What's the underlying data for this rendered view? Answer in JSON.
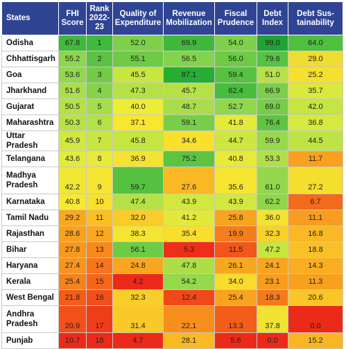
{
  "chart_data": {
    "type": "table",
    "columns": [
      "States",
      "FHI Score",
      "Rank 2022-23",
      "Quality of Expenditure",
      "Revenue Mobilization",
      "Fiscal Prudence",
      "Debt Index",
      "Debt Sus- tainability"
    ],
    "rows": [
      {
        "state": "Odisha",
        "values": [
          "67.8",
          "1",
          "52.0",
          "69.9",
          "54.0",
          "99.0",
          "64.0"
        ],
        "colors": [
          "#3fba3a",
          "#3fba3a",
          "#7ed04a",
          "#40b83a",
          "#7ed14b",
          "#1fa332",
          "#4fc03d"
        ]
      },
      {
        "state": "Chhattisgarh",
        "values": [
          "55.2",
          "2",
          "55.1",
          "56.5",
          "56.0",
          "79.6",
          "29.0"
        ],
        "colors": [
          "#8ed64c",
          "#5cc241",
          "#6fca45",
          "#84d34c",
          "#6ecb46",
          "#58c242",
          "#f0dc30"
        ]
      },
      {
        "state": "Goa",
        "values": [
          "53.6",
          "3",
          "45.5",
          "87.1",
          "59.4",
          "51.0",
          "25.2"
        ],
        "colors": [
          "#92d84e",
          "#74cb46",
          "#c7e640",
          "#27ad34",
          "#57c241",
          "#b7e146",
          "#f6e02e"
        ]
      },
      {
        "state": "Jharkhand",
        "values": [
          "51.6",
          "4",
          "47.3",
          "45.7",
          "62.4",
          "66.9",
          "35.7"
        ],
        "colors": [
          "#aadf4b",
          "#86d24b",
          "#b5e146",
          "#b5e146",
          "#48bc3d",
          "#7ccf4a",
          "#d9ea3d"
        ]
      },
      {
        "state": "Gujarat",
        "values": [
          "50.5",
          "5",
          "40.0",
          "48.7",
          "52.7",
          "69.0",
          "42.0"
        ],
        "colors": [
          "#b4e146",
          "#a6dd49",
          "#eeec36",
          "#a9de4a",
          "#8fd74d",
          "#76cd47",
          "#c5e540"
        ]
      },
      {
        "state": "Maharashtra",
        "values": [
          "50.3",
          "6",
          "37.1",
          "59.1",
          "41.8",
          "76.4",
          "36.8"
        ],
        "colors": [
          "#b7e246",
          "#b4e145",
          "#f7e82f",
          "#78ce48",
          "#e3ea3a",
          "#5ec443",
          "#d6e93e"
        ]
      },
      {
        "state": "Uttar Pradesh",
        "values": [
          "45.9",
          "7",
          "45.8",
          "34.6",
          "44.7",
          "59.9",
          "44.5"
        ],
        "colors": [
          "#d2e83f",
          "#c9e540",
          "#c5e540",
          "#f8e02d",
          "#cde640",
          "#98d94b",
          "#bde344"
        ]
      },
      {
        "state": "Telangana",
        "values": [
          "43.6",
          "8",
          "36.9",
          "75.2",
          "40.8",
          "53.3",
          "11.7"
        ],
        "colors": [
          "#e3eb3a",
          "#e8ea38",
          "#f5e331",
          "#5dc442",
          "#e8e938",
          "#b0df47",
          "#f9a01e"
        ]
      },
      {
        "state": "Madhya Pradesh",
        "values": [
          "42.2",
          "9",
          "59.7",
          "27.6",
          "35.6",
          "61.0",
          "27.2"
        ],
        "colors": [
          "#f0e634",
          "#f5e532",
          "#55c140",
          "#f9b824",
          "#f7e52f",
          "#93d84c",
          "#f4df2f"
        ],
        "tall": true
      },
      {
        "state": "Karnataka",
        "values": [
          "40.8",
          "10",
          "47.4",
          "43.9",
          "43.9",
          "62.2",
          "6.7"
        ],
        "colors": [
          "#f7e92f",
          "#f7e02e",
          "#b5e146",
          "#d3e83e",
          "#d3e83e",
          "#8ed64c",
          "#f46a1b"
        ]
      },
      {
        "state": "Tamil Nadu",
        "values": [
          "29.2",
          "11",
          "32.0",
          "41.2",
          "25.8",
          "36.0",
          "11.1"
        ],
        "colors": [
          "#f9a81f",
          "#f9bf25",
          "#f9cc28",
          "#e3e93a",
          "#f9a41f",
          "#f3e431",
          "#f89d1e"
        ]
      },
      {
        "state": "Rajasthan",
        "values": [
          "28.6",
          "12",
          "38.3",
          "35.4",
          "19.9",
          "32.3",
          "16.8"
        ],
        "colors": [
          "#f9a01e",
          "#f9a81f",
          "#f4e531",
          "#f8df2e",
          "#f47d1c",
          "#f9d02a",
          "#f9b824"
        ]
      },
      {
        "state": "Bihar",
        "values": [
          "27.8",
          "13",
          "56.1",
          "5.3",
          "11.5",
          "47.2",
          "18.8"
        ],
        "colors": [
          "#f9981d",
          "#f88a1c",
          "#6ecb45",
          "#ee2e19",
          "#f25618",
          "#c6e53f",
          "#f9c126"
        ]
      },
      {
        "state": "Haryana",
        "values": [
          "27.4",
          "14",
          "24.8",
          "47.8",
          "26.1",
          "24.1",
          "14.3"
        ],
        "colors": [
          "#f8951d",
          "#f8751b",
          "#f9a51f",
          "#adde48",
          "#f9a71f",
          "#f8a51f",
          "#f9ae21"
        ]
      },
      {
        "state": "Kerala",
        "values": [
          "25.4",
          "15",
          "4.2",
          "54.2",
          "34.0",
          "23.1",
          "11.3"
        ],
        "colors": [
          "#f6821c",
          "#f5661a",
          "#ec2a19",
          "#95d84b",
          "#f9db2c",
          "#f89c1e",
          "#f9a01e"
        ]
      },
      {
        "state": "West Bengal",
        "values": [
          "21.8",
          "16",
          "32.3",
          "12.4",
          "25.4",
          "18.3",
          "20.6"
        ],
        "colors": [
          "#f35d1a",
          "#f2501a",
          "#f9ce29",
          "#f04819",
          "#f9a31f",
          "#f67a1c",
          "#f9c527"
        ]
      },
      {
        "state": "Andhra Pradesh",
        "values": [
          "20.9",
          "17",
          "31.4",
          "22.1",
          "13.3",
          "37.8",
          "0.0"
        ],
        "colors": [
          "#f1501a",
          "#ef3c19",
          "#f9c927",
          "#f88f1c",
          "#f25d18",
          "#f1e332",
          "#ec2a19"
        ],
        "tall": true
      },
      {
        "state": "Punjab",
        "values": [
          "10.7",
          "18",
          "4.7",
          "28.1",
          "5.6",
          "0.0",
          "15.2"
        ],
        "colors": [
          "#ec2a19",
          "#ec2a19",
          "#ec2a19",
          "#f9b923",
          "#ec2a19",
          "#ec2a19",
          "#f9b623"
        ]
      }
    ]
  }
}
